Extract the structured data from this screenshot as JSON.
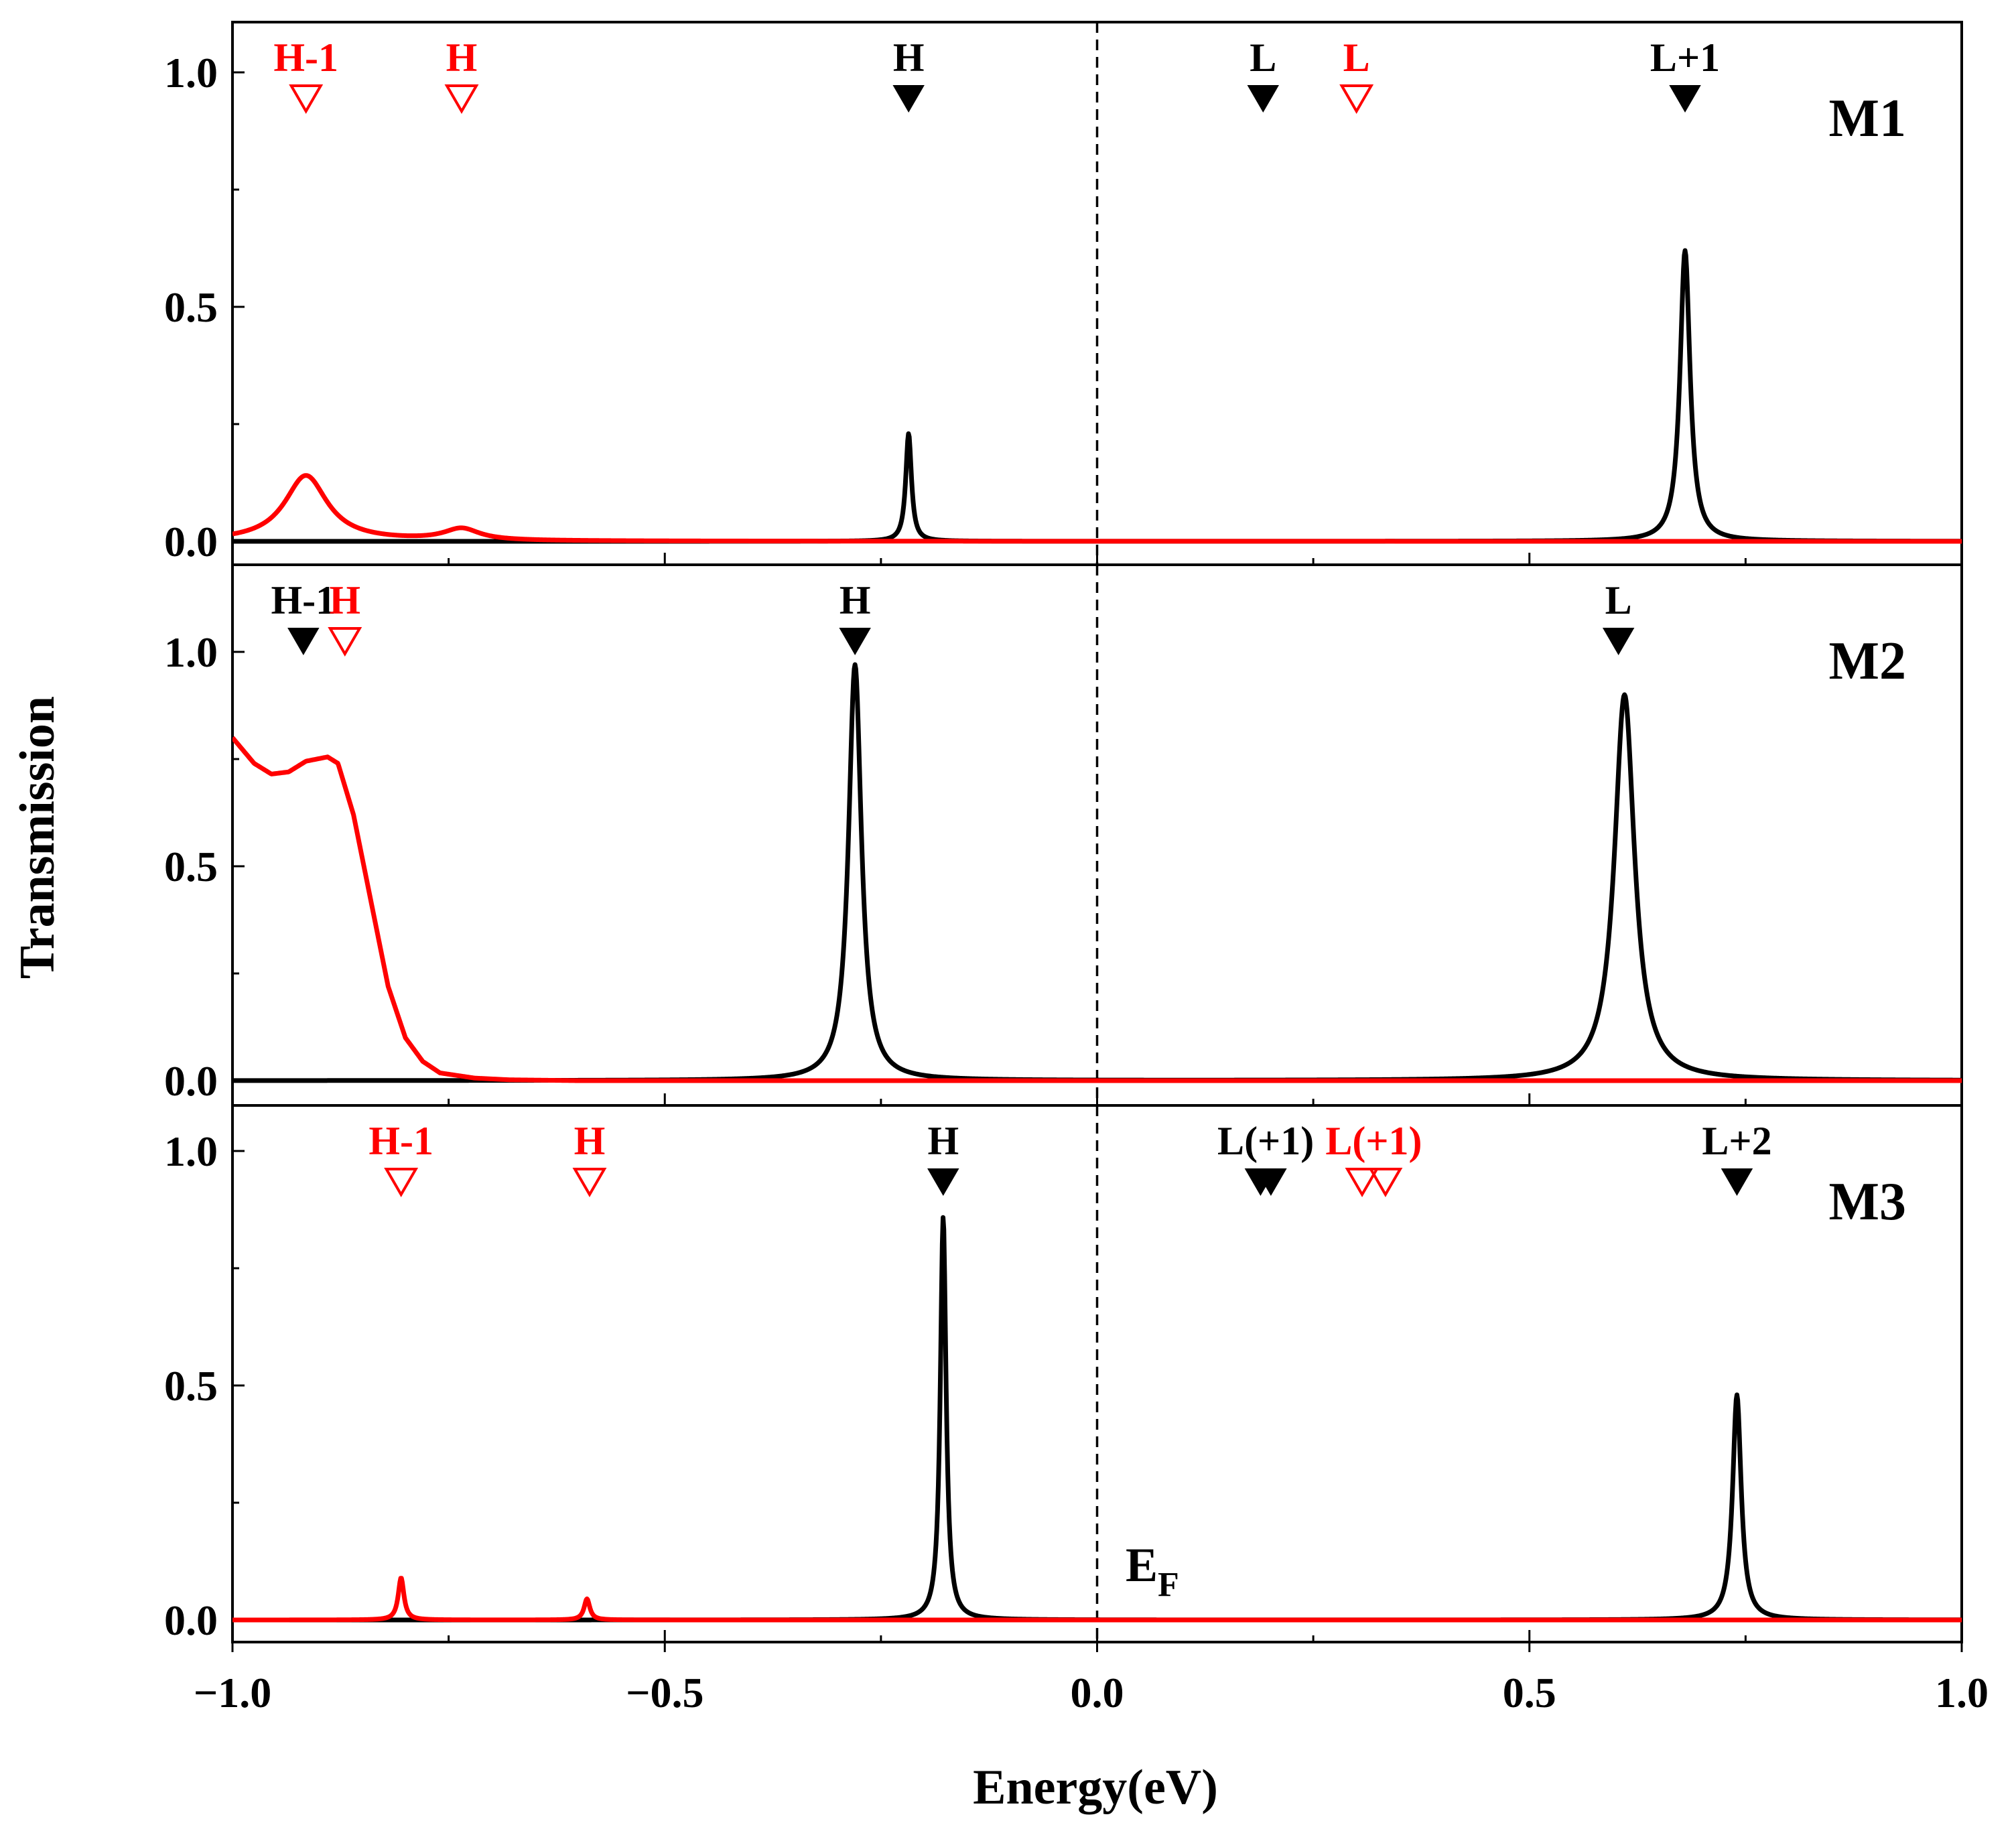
{
  "chart_data": {
    "type": "line",
    "xlabel": "Energy(eV)",
    "ylabel": "Transmission",
    "xlim": [
      -1.0,
      1.0
    ],
    "ylim": [
      -0.05,
      1.12
    ],
    "x_ticks": [
      -1.0,
      -0.5,
      0.0,
      0.5,
      1.0
    ],
    "x_tick_labels": [
      "−1.0",
      "−0.5",
      "0.0",
      "0.5",
      "1.0"
    ],
    "y_ticks": [
      0.0,
      0.5,
      1.0
    ],
    "y_tick_labels": [
      "0.0",
      "0.5",
      "1.0"
    ],
    "fermi_line": {
      "x": 0.0,
      "style": "dashed"
    },
    "fermi_label": {
      "main": "E",
      "sub": "F"
    },
    "colors": {
      "black_series": "#000000",
      "red_series": "#ff0000",
      "axes": "#000000"
    },
    "panels": [
      {
        "name": "M1",
        "series": [
          {
            "name": "black",
            "color": "#000000",
            "baseline": 0.0,
            "peaks": [
              {
                "center": -0.218,
                "height": 0.23,
                "width": 0.004
              },
              {
                "center": 0.68,
                "height": 0.62,
                "width": 0.007
              }
            ]
          },
          {
            "name": "red",
            "color": "#ff0000",
            "baseline": 0.0,
            "peaks": [
              {
                "center": -0.915,
                "height": 0.14,
                "width": 0.03
              },
              {
                "center": -0.735,
                "height": 0.025,
                "width": 0.025
              }
            ]
          }
        ],
        "markers": [
          {
            "label": "H-1",
            "x": -0.915,
            "color": "#ff0000",
            "filled": false
          },
          {
            "label": "H",
            "x": -0.735,
            "color": "#ff0000",
            "filled": false
          },
          {
            "label": "H",
            "x": -0.218,
            "color": "#000000",
            "filled": true
          },
          {
            "label": "L",
            "x": 0.192,
            "color": "#000000",
            "filled": true
          },
          {
            "label": "L",
            "x": 0.3,
            "color": "#ff0000",
            "filled": false
          },
          {
            "label": "L+1",
            "x": 0.68,
            "color": "#000000",
            "filled": true
          }
        ]
      },
      {
        "name": "M2",
        "series": [
          {
            "name": "black",
            "color": "#000000",
            "baseline": 0.0,
            "peaks": [
              {
                "center": -0.28,
                "height": 0.97,
                "width": 0.009
              },
              {
                "center": 0.61,
                "height": 0.9,
                "width": 0.014
              }
            ]
          },
          {
            "name": "red",
            "color": "#ff0000",
            "baseline": 0.0,
            "points": [
              [
                -1.0,
                0.8
              ],
              [
                -0.975,
                0.74
              ],
              [
                -0.955,
                0.715
              ],
              [
                -0.935,
                0.72
              ],
              [
                -0.915,
                0.745
              ],
              [
                -0.89,
                0.755
              ],
              [
                -0.878,
                0.74
              ],
              [
                -0.86,
                0.62
              ],
              [
                -0.84,
                0.42
              ],
              [
                -0.82,
                0.22
              ],
              [
                -0.8,
                0.1
              ],
              [
                -0.78,
                0.045
              ],
              [
                -0.76,
                0.018
              ],
              [
                -0.72,
                0.006
              ],
              [
                -0.68,
                0.002
              ],
              [
                -0.6,
                0.0
              ],
              [
                1.0,
                0.0
              ]
            ]
          }
        ],
        "markers": [
          {
            "label": "H-1",
            "x": -0.918,
            "color": "#000000",
            "filled": true
          },
          {
            "label": "H",
            "x": -0.87,
            "color": "#ff0000",
            "filled": false
          },
          {
            "label": "H",
            "x": -0.28,
            "color": "#000000",
            "filled": true
          },
          {
            "label": "L",
            "x": 0.603,
            "color": "#000000",
            "filled": true
          }
        ]
      },
      {
        "name": "M3",
        "series": [
          {
            "name": "black",
            "color": "#000000",
            "baseline": 0.0,
            "peaks": [
              {
                "center": -0.178,
                "height": 0.86,
                "width": 0.004
              },
              {
                "center": 0.74,
                "height": 0.48,
                "width": 0.006
              }
            ]
          },
          {
            "name": "red",
            "color": "#ff0000",
            "baseline": 0.0,
            "peaks": [
              {
                "center": -0.805,
                "height": 0.09,
                "width": 0.004
              },
              {
                "center": -0.59,
                "height": 0.045,
                "width": 0.004
              }
            ]
          }
        ],
        "markers": [
          {
            "label": "H-1",
            "x": -0.805,
            "color": "#ff0000",
            "filled": false
          },
          {
            "label": "H",
            "x": -0.587,
            "color": "#ff0000",
            "filled": false
          },
          {
            "label": "H",
            "x": -0.178,
            "color": "#000000",
            "filled": true
          },
          {
            "label": "L(+1)",
            "x": 0.195,
            "color": "#000000",
            "filled": true,
            "count": 2,
            "spacing": 0.012
          },
          {
            "label": "L(+1)",
            "x": 0.32,
            "color": "#ff0000",
            "filled": false,
            "count": 2,
            "spacing": 0.027
          },
          {
            "label": "L+2",
            "x": 0.74,
            "color": "#000000",
            "filled": true
          }
        ]
      }
    ]
  }
}
